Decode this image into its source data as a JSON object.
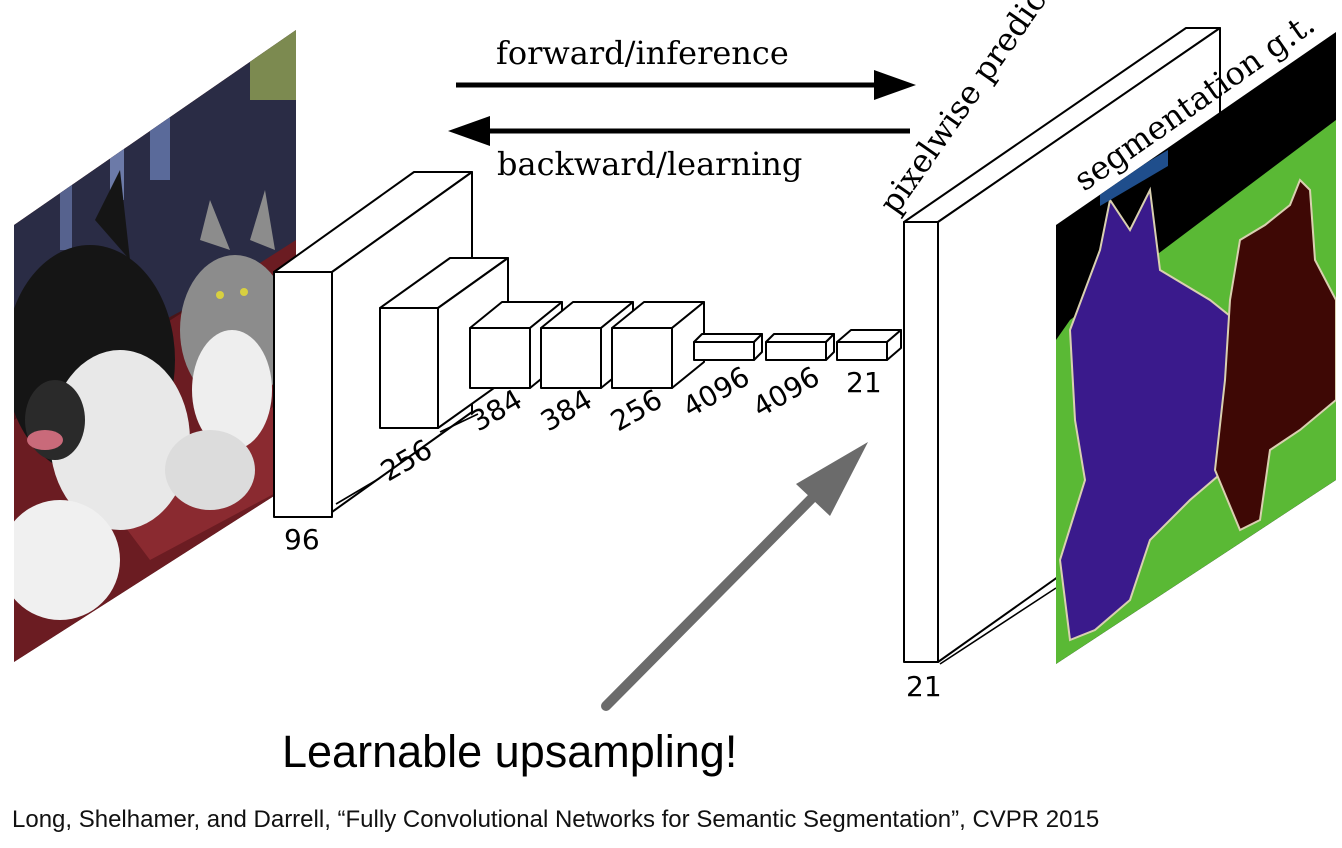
{
  "arrows": {
    "forward_label": "forward/inference",
    "backward_label": "backward/learning"
  },
  "layers": {
    "conv1": "96",
    "conv2": "256",
    "conv3": "384",
    "conv4": "384",
    "conv5": "256",
    "fc6": "4096",
    "fc7": "4096",
    "score": "21"
  },
  "output": {
    "label": "pixelwise prediction",
    "channels": "21"
  },
  "ground_truth": {
    "label": "segmentation g.t."
  },
  "headline": "Learnable upsampling!",
  "caption": "Long, Shelhamer, and Darrell, “Fully Convolutional Networks for Semantic Segmentation”, CVPR 2015",
  "colors": {
    "gt_dog": "#3a1a8c",
    "gt_cat": "#3e0805",
    "gt_background": "#5ab935",
    "gt_void": "#000000",
    "gt_label_bar": "#1f4e8c",
    "upsampling_arrow": "#6b6b6b"
  }
}
